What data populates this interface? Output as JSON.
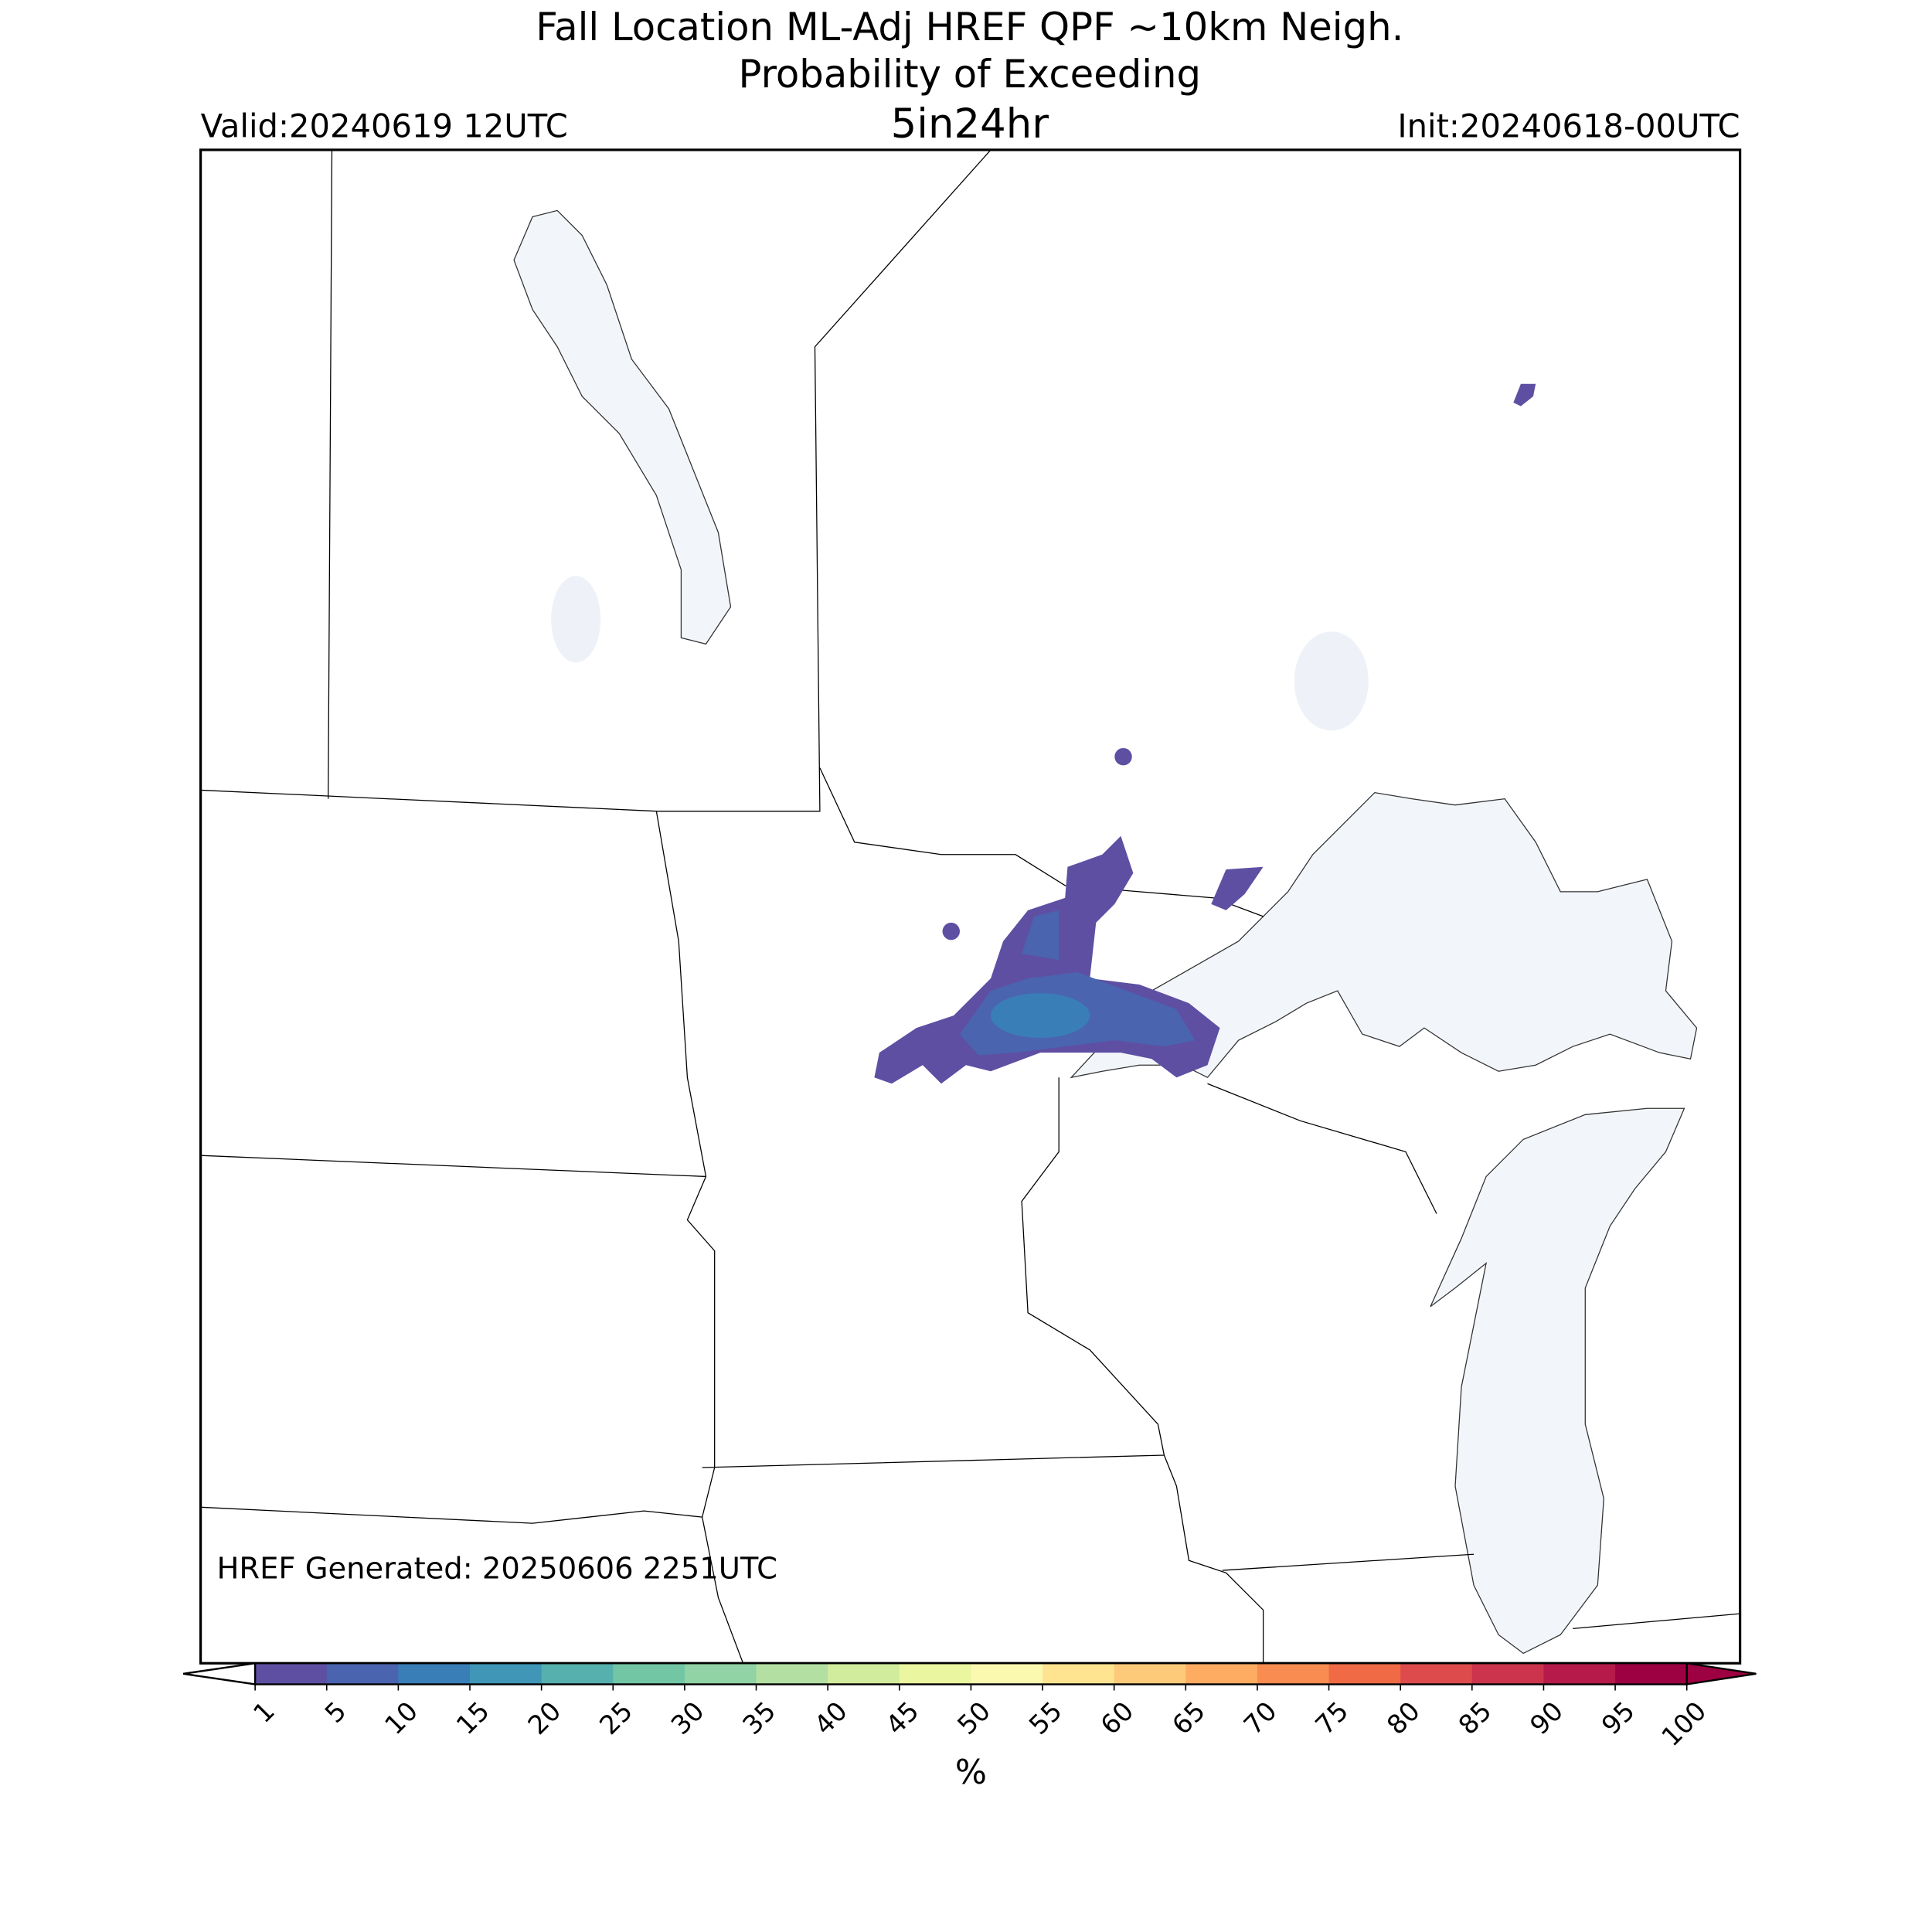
{
  "chart_data": {
    "type": "colorbar",
    "title": "Fall Location ML-Adj HREF QPF ~10km Neigh.",
    "subtitle": "Probability of Exceeding",
    "threshold": "5in24hr",
    "valid": "Valid:20240619 12UTC",
    "init": "Init:20240618-00UTC",
    "annotation": "HREF Generated: 20250606 2251UTC",
    "label": "%",
    "ticks": [
      1,
      5,
      10,
      15,
      20,
      25,
      30,
      35,
      40,
      45,
      50,
      55,
      60,
      65,
      70,
      75,
      80,
      85,
      90,
      95,
      100
    ],
    "colors": [
      "#5e4fa2",
      "#4a64b0",
      "#3a7eb8",
      "#3f96b7",
      "#56b0ad",
      "#72c6a4",
      "#91d3a4",
      "#b3e0a2",
      "#d1ec9c",
      "#ebf7a0",
      "#fbf8b0",
      "#fee491",
      "#fdca79",
      "#fdac62",
      "#f88c51",
      "#ef6a45",
      "#dd4b4c",
      "#cc344d",
      "#b51a4a",
      "#9e0142"
    ],
    "under_color": "#ffffff",
    "over_color": "#9e0142"
  }
}
